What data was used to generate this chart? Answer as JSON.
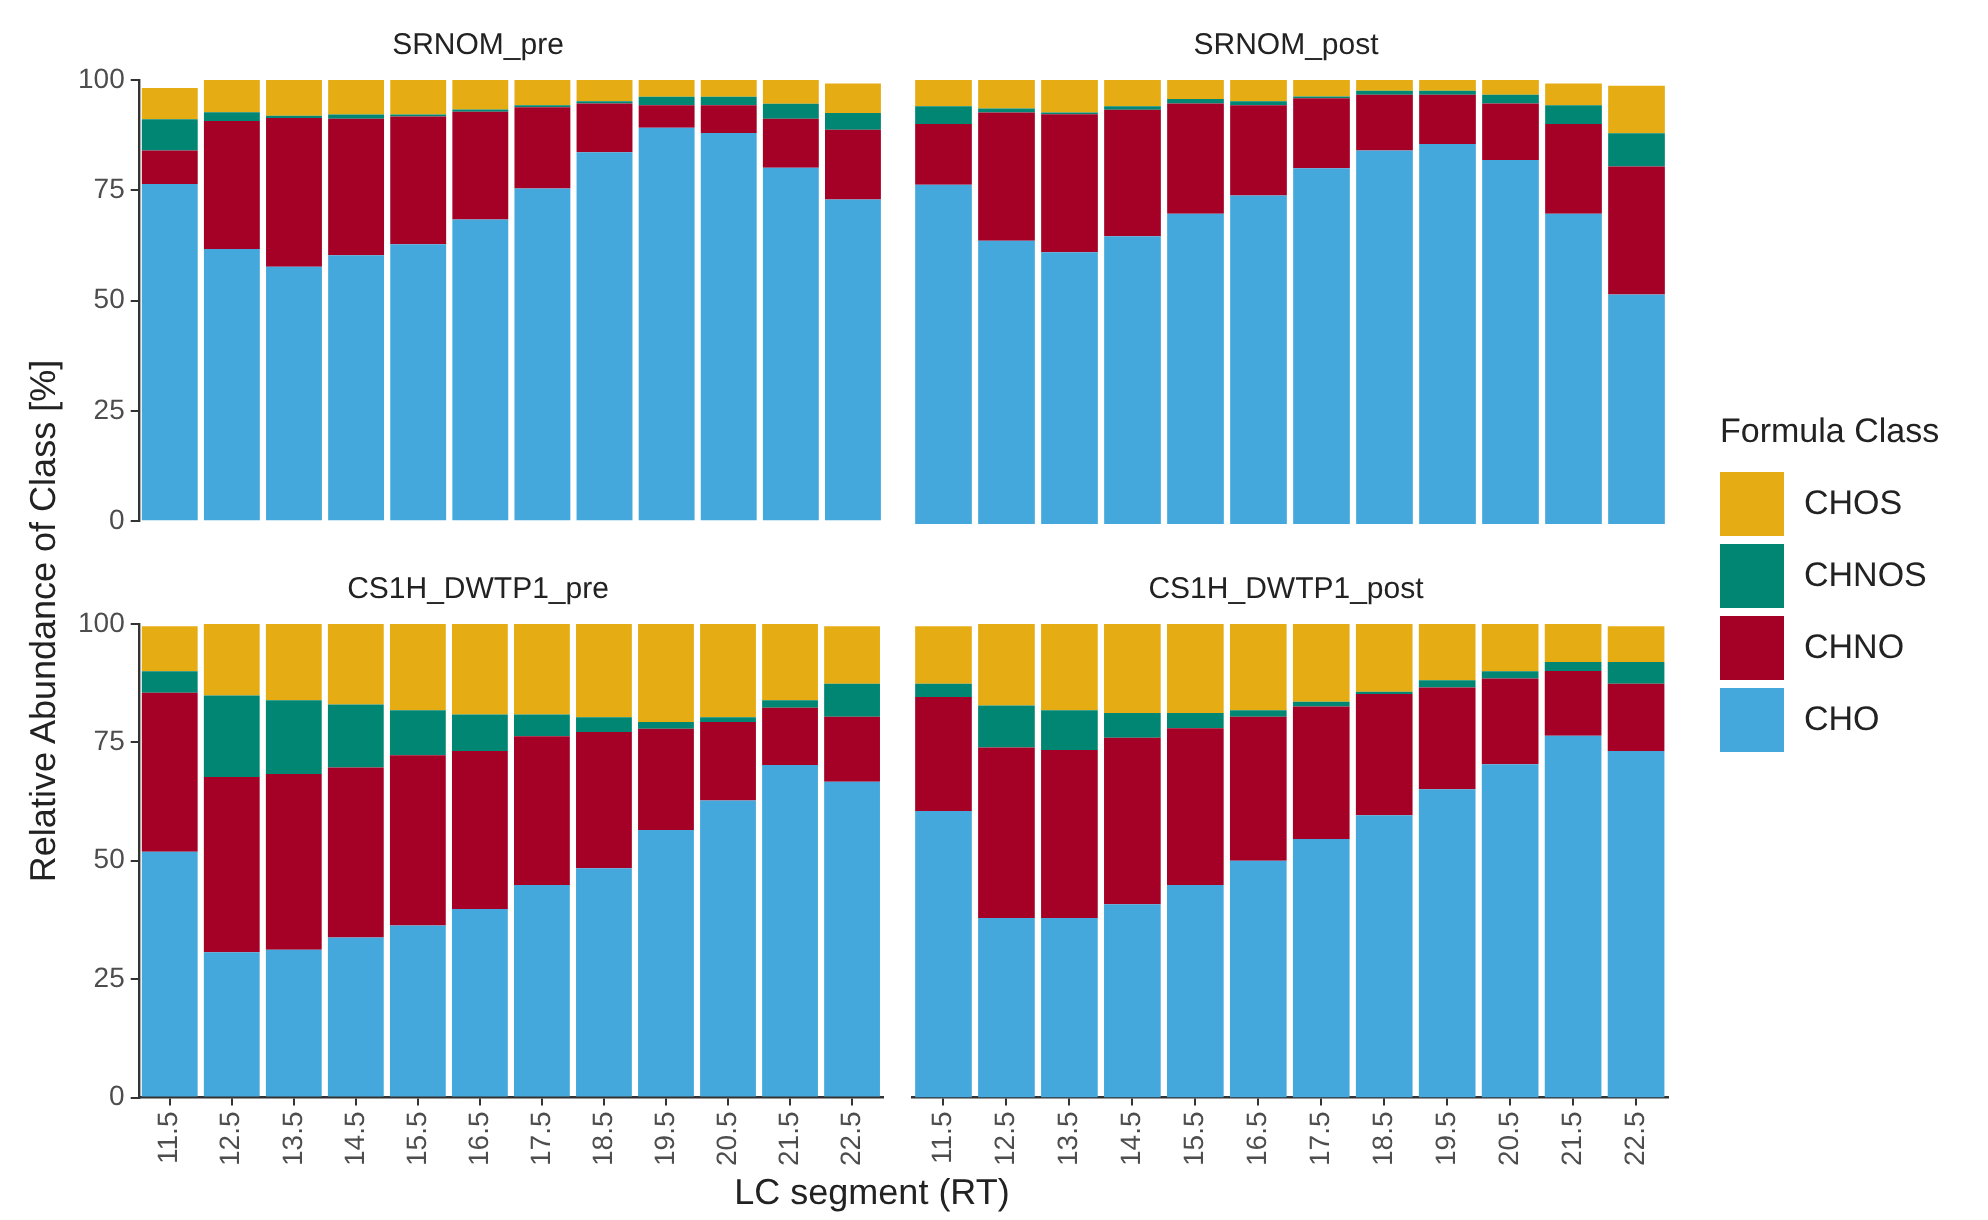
{
  "chart_data": [
    {
      "type": "bar",
      "title": "SRNOM_pre",
      "ylabel": "Relative Abundance of Class [%]",
      "legend": "right",
      "legend_title": "Formula Class",
      "stacked": true,
      "categories": [
        "11.5",
        "12.5",
        "13.5",
        "14.5",
        "15.5",
        "16.5",
        "17.5",
        "18.5",
        "19.5",
        "20.5",
        "21.5",
        "22.5"
      ],
      "ylim": [
        0,
        100
      ],
      "yticks": [
        0,
        25,
        50,
        75,
        100
      ],
      "tick_labels": "y",
      "series": [
        {
          "name": "CHO",
          "color": "#45a8dc",
          "values": [
            76.4,
            61.7,
            57.7,
            60.3,
            62.8,
            68.4,
            75.4,
            83.6,
            89.2,
            88.0,
            80.1,
            72.9
          ]
        },
        {
          "name": "CHNO",
          "color": "#a50026",
          "values": [
            7.6,
            29.0,
            33.7,
            30.9,
            28.9,
            24.4,
            18.4,
            11.1,
            5.1,
            6.3,
            11.1,
            15.8
          ]
        },
        {
          "name": "CHNOS",
          "color": "#008672",
          "values": [
            7.1,
            2.0,
            0.5,
            1.0,
            0.5,
            0.5,
            0.5,
            0.5,
            1.9,
            1.9,
            3.4,
            3.8
          ]
        },
        {
          "name": "CHOS",
          "color": "#e6ac13",
          "values": [
            7.1,
            7.3,
            8.1,
            7.8,
            7.8,
            6.7,
            5.7,
            4.8,
            3.8,
            3.8,
            5.4,
            6.7
          ]
        }
      ]
    },
    {
      "type": "bar",
      "title": "SRNOM_post",
      "stacked": true,
      "categories": [
        "11.5",
        "12.5",
        "13.5",
        "14.5",
        "15.5",
        "16.5",
        "17.5",
        "18.5",
        "19.5",
        "20.5",
        "21.5",
        "22.5"
      ],
      "ylim": [
        0,
        100
      ],
      "yticks": [
        0,
        25,
        50,
        75,
        100
      ],
      "tick_labels": false,
      "series": [
        {
          "color": "#45a8dc",
          "values": [
            76.4,
            63.8,
            61.2,
            64.8,
            69.9,
            74.0,
            80.1,
            84.1,
            85.6,
            82.0,
            69.9,
            51.7
          ]
        },
        {
          "color": "#a50026",
          "values": [
            13.7,
            28.9,
            31.1,
            28.5,
            24.8,
            20.3,
            15.8,
            12.6,
            11.1,
            12.7,
            20.2,
            28.8
          ]
        },
        {
          "color": "#008672",
          "values": [
            4.0,
            0.9,
            0.4,
            0.8,
            1.0,
            0.9,
            0.4,
            0.9,
            0.9,
            2.0,
            4.2,
            7.5
          ]
        },
        {
          "color": "#e6ac13",
          "values": [
            5.9,
            6.4,
            7.3,
            5.9,
            4.3,
            4.8,
            3.7,
            2.4,
            2.4,
            3.3,
            4.9,
            10.7
          ]
        }
      ]
    },
    {
      "type": "bar",
      "title": "CS1H_DWTP1_pre",
      "xlabel": "LC segment (RT)",
      "stacked": true,
      "categories": [
        "11.5",
        "12.5",
        "13.5",
        "14.5",
        "15.5",
        "16.5",
        "17.5",
        "18.5",
        "19.5",
        "20.5",
        "21.5",
        "22.5"
      ],
      "ylim": [
        0,
        100
      ],
      "yticks": [
        0,
        25,
        50,
        75,
        100
      ],
      "series": [
        {
          "color": "#45a8dc",
          "values": [
            51.9,
            30.7,
            31.2,
            33.8,
            36.3,
            39.8,
            44.9,
            48.4,
            56.5,
            62.7,
            70.2,
            66.7
          ]
        },
        {
          "color": "#a50026",
          "values": [
            33.6,
            37.0,
            37.1,
            35.9,
            36.0,
            33.4,
            31.4,
            28.8,
            21.4,
            16.6,
            12.1,
            13.7
          ]
        },
        {
          "color": "#008672",
          "values": [
            4.5,
            17.2,
            15.6,
            13.3,
            9.5,
            7.7,
            4.6,
            3.1,
            1.4,
            1.0,
            1.6,
            7.0
          ]
        },
        {
          "color": "#e6ac13",
          "values": [
            9.5,
            15.1,
            16.1,
            17.0,
            18.2,
            19.1,
            19.1,
            19.7,
            20.7,
            19.7,
            16.1,
            12.1
          ]
        }
      ]
    },
    {
      "type": "bar",
      "title": "CS1H_DWTP1_post",
      "stacked": true,
      "categories": [
        "11.5",
        "12.5",
        "13.5",
        "14.5",
        "15.5",
        "16.5",
        "17.5",
        "18.5",
        "19.5",
        "20.5",
        "21.5",
        "22.5"
      ],
      "ylim": [
        0,
        100
      ],
      "yticks": [
        0,
        25,
        50,
        75,
        100
      ],
      "tick_labels": "x",
      "series": [
        {
          "color": "#45a8dc",
          "values": [
            60.5,
            37.9,
            37.9,
            40.8,
            44.9,
            50.0,
            54.6,
            59.6,
            65.1,
            70.4,
            76.4,
            73.2
          ]
        },
        {
          "color": "#a50026",
          "values": [
            24.1,
            36.0,
            35.5,
            35.2,
            33.1,
            30.4,
            28.0,
            25.6,
            21.5,
            18.1,
            13.7,
            14.2
          ]
        },
        {
          "color": "#008672",
          "values": [
            2.8,
            8.9,
            8.4,
            5.2,
            3.2,
            1.4,
            1.0,
            0.5,
            1.5,
            1.5,
            1.9,
            4.6
          ]
        },
        {
          "color": "#e6ac13",
          "values": [
            12.1,
            17.2,
            18.2,
            18.8,
            18.8,
            18.2,
            16.4,
            14.3,
            11.9,
            10.0,
            8.0,
            7.5
          ]
        }
      ]
    }
  ]
}
